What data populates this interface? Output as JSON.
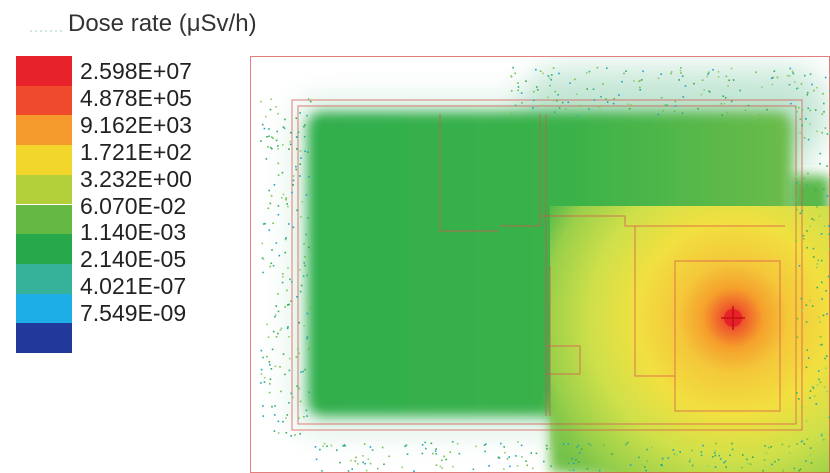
{
  "title": "Dose rate (μSv/h)",
  "legend": {
    "levels": [
      {
        "label": "2.598E+07",
        "color": "#e8222a"
      },
      {
        "label": "4.878E+05",
        "color": "#ef4a2c"
      },
      {
        "label": "9.162E+03",
        "color": "#f59a2c"
      },
      {
        "label": "1.721E+02",
        "color": "#f2d62b"
      },
      {
        "label": "3.232E+00",
        "color": "#b3cf3a"
      },
      {
        "label": "6.070E-02",
        "color": "#66b845"
      },
      {
        "label": "1.140E-03",
        "color": "#27a94b"
      },
      {
        "label": "2.140E-05",
        "color": "#36b19a"
      },
      {
        "label": "4.021E-07",
        "color": "#1eaee6"
      },
      {
        "label": "7.549E-09",
        "color": "#23399a"
      }
    ]
  }
}
